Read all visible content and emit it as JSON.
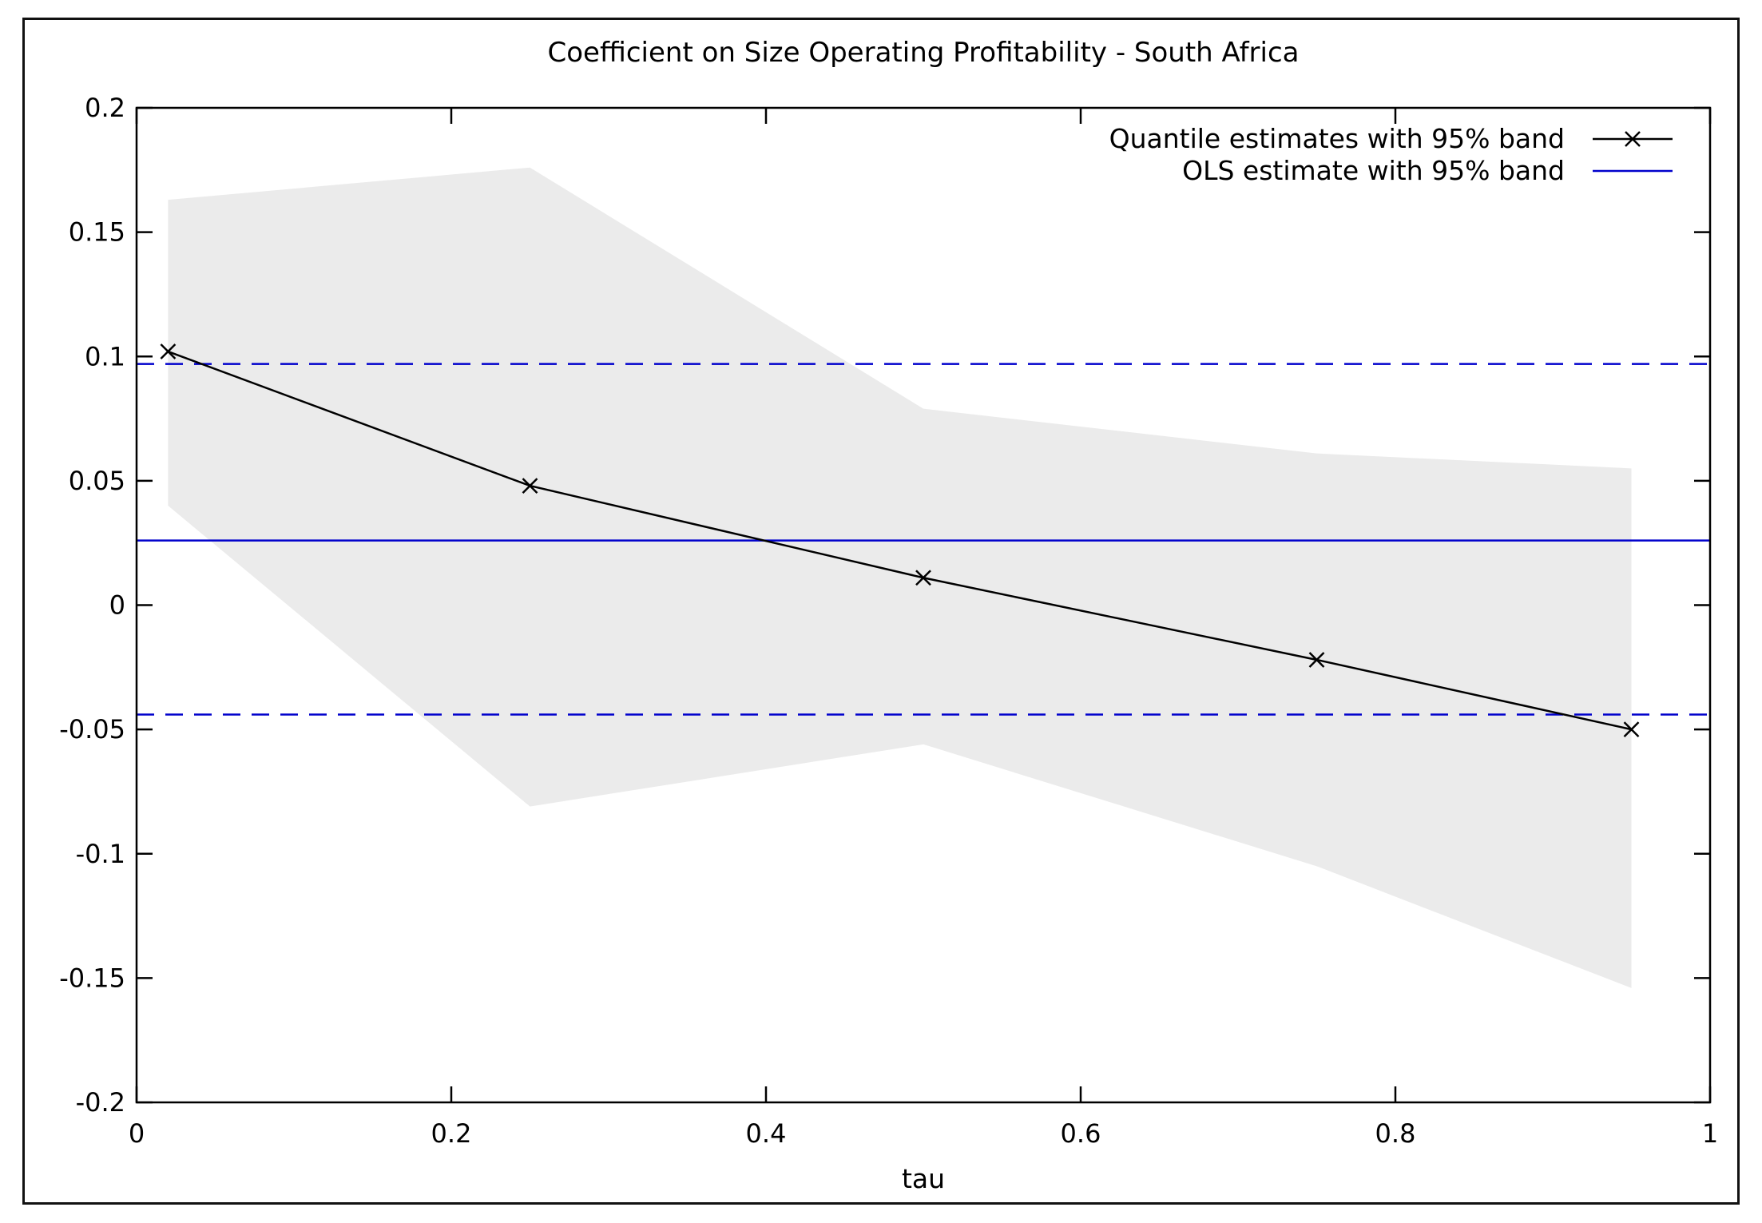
{
  "chart_data": {
    "type": "line",
    "title": "Coefficient on Size Operating Profitability - South Africa",
    "xlabel": "tau",
    "ylabel": "",
    "xlim": [
      0,
      1
    ],
    "ylim": [
      -0.2,
      0.2
    ],
    "x_ticks": [
      0,
      0.2,
      0.4,
      0.6,
      0.8,
      1
    ],
    "x_tick_labels": [
      "0",
      "0.2",
      "0.4",
      "0.6",
      "0.8",
      "1"
    ],
    "y_ticks": [
      0.2,
      0.15,
      0.1,
      0.05,
      0,
      -0.05,
      -0.1,
      -0.15,
      -0.2
    ],
    "y_tick_labels": [
      "0.2",
      "0.15",
      "0.1",
      "0.05",
      "0",
      "-0.05",
      "-0.1",
      "-0.15",
      "-0.2"
    ],
    "grid": false,
    "legend_position": "top-right",
    "series": [
      {
        "name": "Quantile estimates with 95% band",
        "type": "line-with-markers",
        "marker": "x",
        "color": "#000000",
        "x": [
          0.02,
          0.25,
          0.5,
          0.75,
          0.95
        ],
        "values": [
          0.102,
          0.048,
          0.011,
          -0.022,
          -0.05
        ],
        "band_upper": [
          0.163,
          0.176,
          0.079,
          0.061,
          0.055
        ],
        "band_lower": [
          0.04,
          -0.081,
          -0.056,
          -0.105,
          -0.154
        ],
        "band_color": "#ebebeb"
      },
      {
        "name": "OLS estimate with 95% band",
        "type": "hline",
        "color": "#0000cc",
        "value": 0.026,
        "band_upper": 0.097,
        "band_lower": -0.044
      }
    ]
  }
}
